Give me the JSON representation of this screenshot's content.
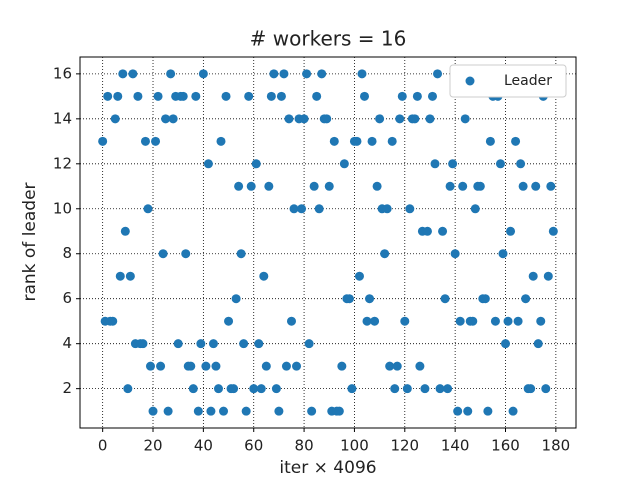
{
  "chart_data": {
    "type": "scatter",
    "title": "# workers = 16",
    "xlabel": "iter × 4096",
    "ylabel": "rank of leader",
    "x": [
      0,
      1,
      2,
      3,
      4,
      5,
      6,
      7,
      8,
      9,
      10,
      11,
      12,
      13,
      14,
      15,
      16,
      17,
      18,
      19,
      20,
      21,
      22,
      23,
      24,
      25,
      26,
      27,
      28,
      29,
      30,
      31,
      32,
      33,
      34,
      35,
      36,
      37,
      38,
      39,
      40,
      41,
      42,
      43,
      44,
      45,
      46,
      47,
      48,
      49,
      50,
      51,
      52,
      53,
      54,
      55,
      56,
      57,
      58,
      59,
      60,
      61,
      62,
      63,
      64,
      65,
      66,
      67,
      68,
      69,
      70,
      71,
      72,
      73,
      74,
      75,
      76,
      77,
      78,
      79,
      80,
      81,
      82,
      83,
      84,
      85,
      86,
      87,
      88,
      89,
      90,
      91,
      92,
      93,
      94,
      95,
      96,
      97,
      98,
      99,
      100,
      101,
      102,
      103,
      104,
      105,
      106,
      107,
      108,
      109,
      110,
      111,
      112,
      113,
      114,
      115,
      116,
      117,
      118,
      119,
      120,
      121,
      122,
      123,
      124,
      125,
      126,
      127,
      128,
      129,
      130,
      131,
      132,
      133,
      134,
      135,
      136,
      137,
      138,
      139,
      140,
      141,
      142,
      143,
      144,
      145,
      146,
      147,
      148,
      149,
      150,
      151,
      152,
      153,
      154,
      155,
      156,
      157,
      158,
      159,
      160,
      161,
      162,
      163,
      164,
      165,
      166,
      167,
      168,
      169,
      170,
      171,
      172,
      173,
      174,
      175,
      176,
      177,
      178,
      179
    ],
    "series": [
      {
        "name": "Leader",
        "color": "#1f77b4",
        "values": [
          13,
          5,
          15,
          5,
          5,
          14,
          15,
          7,
          16,
          9,
          2,
          7,
          16,
          4,
          15,
          4,
          4,
          13,
          10,
          3,
          1,
          13,
          15,
          3,
          8,
          14,
          1,
          16,
          14,
          15,
          4,
          15,
          15,
          8,
          3,
          3,
          2,
          15,
          1,
          4,
          16,
          3,
          12,
          1,
          4,
          3,
          2,
          13,
          1,
          15,
          5,
          2,
          2,
          6,
          11,
          8,
          4,
          1,
          15,
          11,
          2,
          12,
          4,
          2,
          7,
          3,
          11,
          15,
          16,
          2,
          1,
          15,
          16,
          3,
          14,
          5,
          10,
          3,
          14,
          10,
          14,
          16,
          4,
          1,
          11,
          15,
          10,
          16,
          14,
          14,
          11,
          1,
          13,
          1,
          1,
          3,
          12,
          6,
          6,
          2,
          13,
          13,
          7,
          16,
          15,
          5,
          6,
          13,
          5,
          11,
          14,
          10,
          8,
          10,
          3,
          13,
          2,
          3,
          14,
          15,
          5,
          2,
          10,
          14,
          14,
          15,
          3,
          9,
          2,
          9,
          14,
          15,
          12,
          16,
          2,
          9,
          6,
          2,
          11,
          12,
          8,
          1,
          5,
          11,
          14,
          1,
          5,
          5,
          10,
          11,
          11,
          6,
          6,
          1,
          13,
          15,
          5,
          15,
          12,
          8,
          4,
          5,
          9,
          1,
          13,
          5,
          12,
          11,
          6,
          2,
          2,
          7,
          11,
          4,
          5,
          15,
          2,
          7,
          11,
          9
        ]
      }
    ],
    "xlim": [
      -9,
      188
    ],
    "ylim": [
      0.25,
      16.75
    ],
    "xticks": [
      0,
      20,
      40,
      60,
      80,
      100,
      120,
      140,
      160,
      180
    ],
    "yticks": [
      2,
      4,
      6,
      8,
      10,
      12,
      14,
      16
    ],
    "grid": true,
    "legend": "upper right"
  }
}
